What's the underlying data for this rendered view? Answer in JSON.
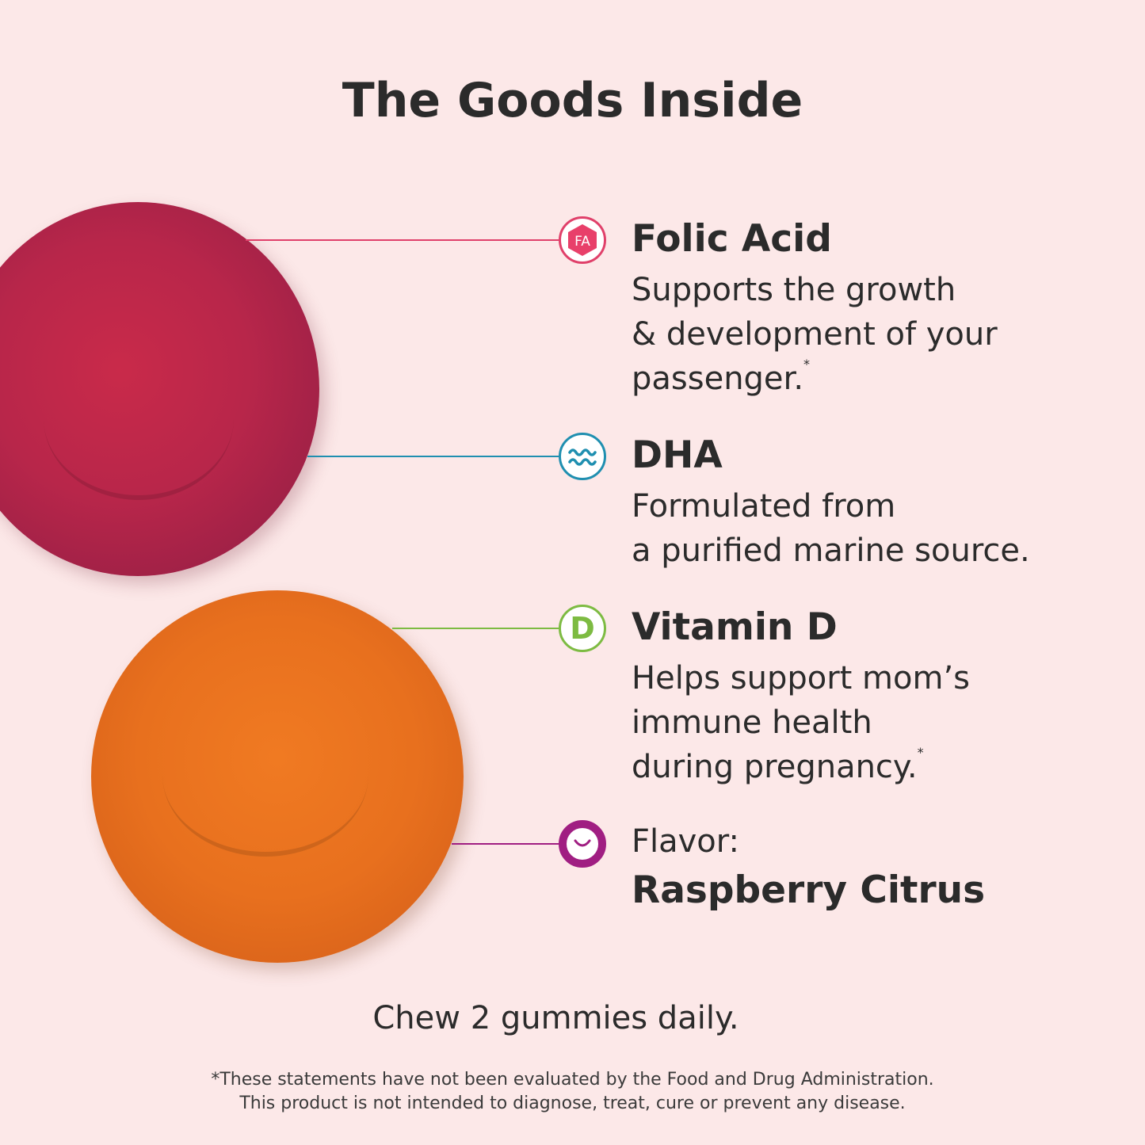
{
  "title": "The Goods Inside",
  "colors": {
    "background": "#fce8e8",
    "folic": "#e0406a",
    "dha": "#1f8fb0",
    "vitamin_d": "#7dbb42",
    "flavor": "#a01e82"
  },
  "items": [
    {
      "icon": "folic-acid-hexagon-icon",
      "icon_text": "FA",
      "heading": "Folic Acid",
      "body": "Supports the growth\n& development of your\npassenger.",
      "asterisk": "*"
    },
    {
      "icon": "waves-icon",
      "heading": "DHA",
      "body": "Formulated from\na purified marine source."
    },
    {
      "icon": "vitamin-d-icon",
      "icon_text": "D",
      "heading": "Vitamin D",
      "body": "Helps support mom’s\nimmune health\nduring pregnancy.",
      "asterisk": "*"
    },
    {
      "icon": "smiley-ring-icon",
      "label": "Flavor:",
      "heading": "Raspberry Citrus"
    }
  ],
  "instruction": "Chew 2 gummies daily.",
  "disclaimer": [
    "*These statements have not been evaluated by the Food and Drug Administration.",
    "This product is not intended to diagnose, treat, cure or prevent any disease."
  ]
}
